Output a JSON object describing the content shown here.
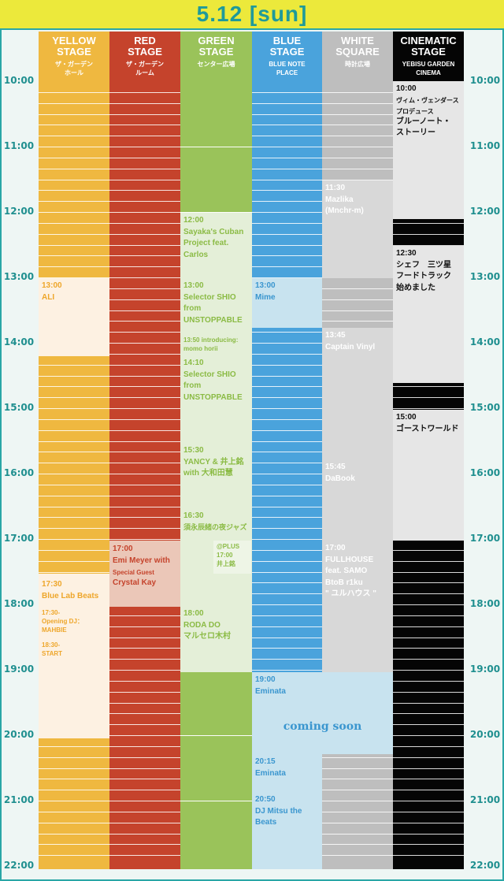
{
  "header": {
    "title": "5.12 [sun]"
  },
  "times": [
    "10:00",
    "11:00",
    "12:00",
    "13:00",
    "14:00",
    "15:00",
    "16:00",
    "17:00",
    "18:00",
    "19:00",
    "20:00",
    "21:00",
    "22:00"
  ],
  "colors": {
    "yellow": "#efb840",
    "yellow_light": "#fdf1e2",
    "yellow_text": "#eea62a",
    "red": "#c5432c",
    "red_light": "#ebc7b8",
    "red_text": "#c5432c",
    "green": "#9ac35a",
    "green_light": "#e4efd8",
    "green_text": "#8bbb45",
    "blue": "#4aa3dc",
    "blue_light": "#c8e3ef",
    "blue_text": "#3a96cf",
    "white": "#bebebe",
    "white_light": "#d8d8d8",
    "cinema": "#050505",
    "cinema_light": "#e6e6e6",
    "accent": "#2aa6a6",
    "header_bg": "#ece93b"
  },
  "stages": [
    {
      "key": "yellow",
      "name1": "YELLOW",
      "name2": "STAGE",
      "sub1": "ザ・ガーデン",
      "sub2": "ホール",
      "color": "#efb840"
    },
    {
      "key": "red",
      "name1": "RED",
      "name2": "STAGE",
      "sub1": "ザ・ガーデン",
      "sub2": "ルーム",
      "color": "#c5432c"
    },
    {
      "key": "green",
      "name1": "GREEN",
      "name2": "STAGE",
      "sub1": "センター広場",
      "sub2": "",
      "color": "#9ac35a"
    },
    {
      "key": "blue",
      "name1": "BLUE",
      "name2": "STAGE",
      "sub1": "BLUE NOTE",
      "sub2": "PLACE",
      "color": "#4aa3dc"
    },
    {
      "key": "white",
      "name1": "WHITE",
      "name2": "SQUARE",
      "sub1": "時計広場",
      "sub2": "",
      "color": "#bebebe"
    },
    {
      "key": "cinema",
      "name1": "CINEMATIC",
      "name2": "STAGE",
      "sub1": "YEBISU GARDEN",
      "sub2": "CINEMA",
      "color": "#050505"
    }
  ],
  "events": {
    "yellow": [
      {
        "time": "13:00",
        "l1": "ALI"
      },
      {
        "time": "17:30",
        "l1": "Blue Lab Beats",
        "note1": "17:30-",
        "note2": "Opening DJ：MAHBIE",
        "note3": "18:30-",
        "note4": "START"
      }
    ],
    "red": [
      {
        "time": "17:00",
        "l1": "Emi Meyer with",
        "l2": "Special Guest",
        "l3": "Crystal Kay"
      }
    ],
    "green": [
      {
        "time": "12:00",
        "l1": "Sayaka's Cuban",
        "l2": "Project feat.",
        "l3": "Carlos"
      },
      {
        "time": "13:00",
        "l1": "Selector SHIO",
        "l2": "from",
        "l3": "UNSTOPPABLE"
      },
      {
        "time": "13:50",
        "l1": "introducing:",
        "l2": "momo horii"
      },
      {
        "time": "14:10",
        "l1": "Selector SHIO",
        "l2": "from",
        "l3": "UNSTOPPABLE"
      },
      {
        "time": "15:30",
        "l1": "YANCY & 井上銘",
        "l2": "with 大和田慧"
      },
      {
        "time": "16:30",
        "l1": "須永辰緒の夜ジャズ",
        "plus1": "@PLUS",
        "plus2": "17:00",
        "plus3": "井上銘"
      },
      {
        "time": "18:00",
        "l1": "RODA DO",
        "l2": "マルセロ木村"
      }
    ],
    "blue": [
      {
        "time": "13:00",
        "l1": "Mime"
      },
      {
        "time": "19:00",
        "l1": "Eminata"
      },
      {
        "coming": "coming soon"
      },
      {
        "time": "20:15",
        "l1": "Eminata"
      },
      {
        "time": "20:50",
        "l1": "DJ Mitsu the",
        "l2": "Beats"
      }
    ],
    "white": [
      {
        "time": "11:30",
        "l1": "Mazlika",
        "l2": "(Mnchr-m)"
      },
      {
        "time": "13:45",
        "l1": "Captain Vinyl"
      },
      {
        "time": "15:45",
        "l1": "DaBook"
      },
      {
        "time": "17:00",
        "l1": "FULLHOUSE",
        "l2": "feat. SAMO",
        "l3": "BtoB r1ku",
        "l4": "\" ユルハウス \""
      }
    ],
    "cinema": [
      {
        "time": "10:00",
        "s1": "ヴィム・ヴェンダース",
        "s2": "プロデュース",
        "l1": "ブルーノート・",
        "l2": "ストーリー"
      },
      {
        "time": "12:30",
        "l1": "シェフ　三ツ星",
        "l2": "フードトラック",
        "l3": "始めました"
      },
      {
        "time": "15:00",
        "l1": "ゴーストワールド"
      }
    ]
  }
}
